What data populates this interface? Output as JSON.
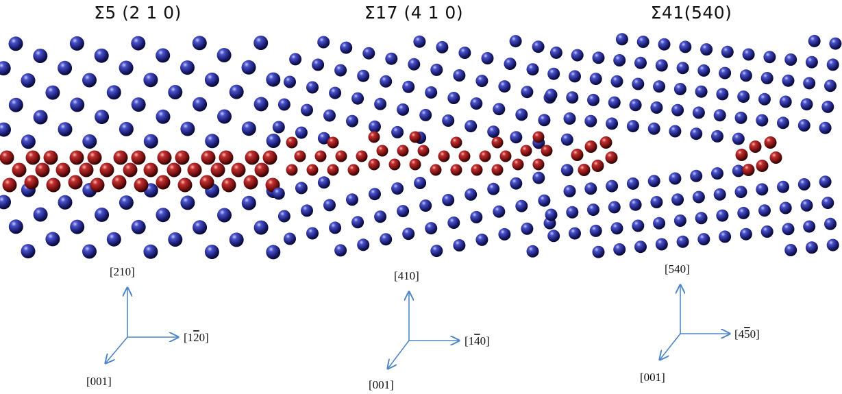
{
  "panels": [
    {
      "title": "Σ5 (2 1 0)",
      "axes": {
        "vertical": {
          "main": "[210]",
          "bar": ""
        },
        "horizontal": {
          "pre": "[1",
          "bar": "2",
          "post": "0]"
        },
        "diagonal": {
          "main": "[001]"
        }
      },
      "boundary": "continuous"
    },
    {
      "title": "Σ17 (4 1 0)",
      "axes": {
        "vertical": {
          "main": "[410]",
          "bar": ""
        },
        "horizontal": {
          "pre": "[1",
          "bar": "4",
          "post": "0]"
        },
        "diagonal": {
          "main": "[001]"
        }
      },
      "boundary": "segments"
    },
    {
      "title": "Σ41(540)",
      "axes": {
        "vertical": {
          "main": "[540]",
          "bar": ""
        },
        "horizontal": {
          "pre": "[4",
          "bar": "5",
          "post": "0]"
        },
        "diagonal": {
          "main": "[001]"
        }
      },
      "boundary": "clusters"
    }
  ],
  "colors": {
    "matrix_atom": "#1c1f78",
    "boundary_atom": "#7a1010",
    "axis_arrow": "#4f86c6"
  }
}
